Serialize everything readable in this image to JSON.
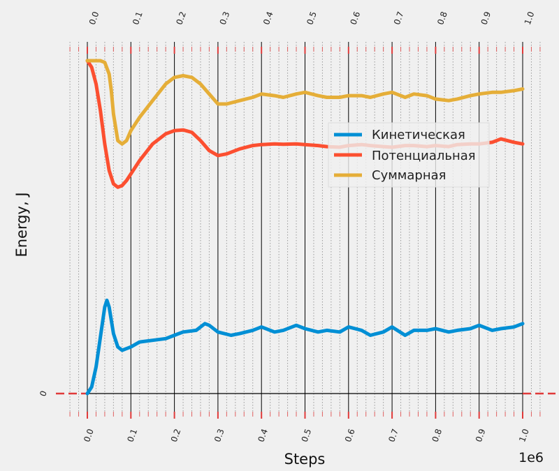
{
  "chart_data": {
    "type": "line",
    "title": "",
    "xlabel": "Steps",
    "ylabel": "Energy, J",
    "x_offset_label": "1e6",
    "xlim": [
      -0.04,
      1.04
    ],
    "ylim": [
      -0.12,
      1.1
    ],
    "x_ticks": [
      0.0,
      0.1,
      0.2,
      0.3,
      0.4,
      0.5,
      0.6,
      0.7,
      0.8,
      0.9,
      1.0
    ],
    "x_tick_labels": [
      "0.0",
      "0.1",
      "0.2",
      "0.3",
      "0.4",
      "0.5",
      "0.6",
      "0.7",
      "0.8",
      "0.9",
      "1.0"
    ],
    "y_tick_labels": [
      "0"
    ],
    "grid": true,
    "legend_position": "center-right",
    "colors": {
      "background": "#f0f0f0",
      "kinetic": "#008fd5",
      "potential": "#fc4f30",
      "total": "#e5ae38",
      "tick_marks": "#e03a3a"
    },
    "series": [
      {
        "name": "Кинетическая",
        "x": [
          0,
          0.01,
          0.02,
          0.03,
          0.04,
          0.045,
          0.05,
          0.06,
          0.07,
          0.08,
          0.09,
          0.1,
          0.12,
          0.15,
          0.18,
          0.2,
          0.22,
          0.25,
          0.27,
          0.28,
          0.3,
          0.33,
          0.35,
          0.38,
          0.4,
          0.43,
          0.45,
          0.48,
          0.5,
          0.53,
          0.55,
          0.58,
          0.6,
          0.63,
          0.65,
          0.68,
          0.7,
          0.73,
          0.75,
          0.78,
          0.8,
          0.83,
          0.85,
          0.88,
          0.9,
          0.93,
          0.95,
          0.98,
          1.0
        ],
        "y": [
          0,
          0.02,
          0.08,
          0.17,
          0.26,
          0.28,
          0.26,
          0.18,
          0.14,
          0.13,
          0.135,
          0.14,
          0.155,
          0.16,
          0.165,
          0.175,
          0.185,
          0.19,
          0.21,
          0.205,
          0.185,
          0.175,
          0.18,
          0.19,
          0.2,
          0.185,
          0.19,
          0.205,
          0.195,
          0.185,
          0.19,
          0.185,
          0.2,
          0.19,
          0.175,
          0.185,
          0.2,
          0.175,
          0.19,
          0.19,
          0.195,
          0.185,
          0.19,
          0.195,
          0.205,
          0.19,
          0.195,
          0.2,
          0.21
        ]
      },
      {
        "name": "Потенциальная",
        "x": [
          0,
          0.01,
          0.02,
          0.03,
          0.04,
          0.05,
          0.06,
          0.07,
          0.08,
          0.09,
          0.1,
          0.12,
          0.15,
          0.18,
          0.2,
          0.22,
          0.24,
          0.26,
          0.28,
          0.3,
          0.32,
          0.35,
          0.38,
          0.4,
          0.43,
          0.45,
          0.48,
          0.5,
          0.53,
          0.55,
          0.58,
          0.6,
          0.63,
          0.65,
          0.68,
          0.7,
          0.73,
          0.75,
          0.78,
          0.8,
          0.83,
          0.85,
          0.88,
          0.9,
          0.93,
          0.95,
          0.98,
          1.0
        ],
        "y": [
          1.0,
          0.98,
          0.93,
          0.85,
          0.75,
          0.67,
          0.63,
          0.62,
          0.625,
          0.64,
          0.66,
          0.7,
          0.75,
          0.78,
          0.79,
          0.792,
          0.785,
          0.76,
          0.73,
          0.715,
          0.72,
          0.735,
          0.745,
          0.748,
          0.75,
          0.749,
          0.75,
          0.748,
          0.745,
          0.742,
          0.74,
          0.745,
          0.748,
          0.745,
          0.742,
          0.74,
          0.745,
          0.745,
          0.742,
          0.745,
          0.742,
          0.748,
          0.75,
          0.75,
          0.755,
          0.765,
          0.755,
          0.75
        ]
      },
      {
        "name": "Суммарная",
        "x": [
          0,
          0.01,
          0.02,
          0.03,
          0.04,
          0.05,
          0.055,
          0.06,
          0.07,
          0.08,
          0.09,
          0.1,
          0.12,
          0.15,
          0.18,
          0.2,
          0.22,
          0.24,
          0.26,
          0.28,
          0.3,
          0.32,
          0.35,
          0.38,
          0.4,
          0.43,
          0.45,
          0.48,
          0.5,
          0.53,
          0.55,
          0.58,
          0.6,
          0.63,
          0.65,
          0.68,
          0.7,
          0.73,
          0.75,
          0.78,
          0.8,
          0.83,
          0.85,
          0.88,
          0.9,
          0.93,
          0.95,
          0.98,
          1.0
        ],
        "y": [
          1.0,
          1.0,
          1.0,
          1.0,
          0.995,
          0.96,
          0.91,
          0.84,
          0.76,
          0.75,
          0.76,
          0.79,
          0.83,
          0.88,
          0.93,
          0.95,
          0.955,
          0.95,
          0.93,
          0.9,
          0.87,
          0.87,
          0.88,
          0.89,
          0.9,
          0.895,
          0.89,
          0.9,
          0.905,
          0.895,
          0.89,
          0.89,
          0.895,
          0.895,
          0.89,
          0.9,
          0.905,
          0.89,
          0.9,
          0.895,
          0.885,
          0.88,
          0.885,
          0.895,
          0.9,
          0.905,
          0.905,
          0.91,
          0.915
        ]
      }
    ]
  }
}
